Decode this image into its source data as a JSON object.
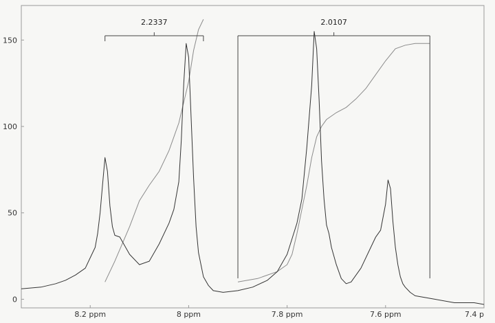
{
  "chart_data": {
    "type": "line",
    "title": "",
    "xlabel": "",
    "ylabel": "",
    "x_reversed": true,
    "xlim": [
      8.34,
      7.4
    ],
    "ylim": [
      -5,
      170
    ],
    "x_ticks": [
      {
        "value": 8.2,
        "label": "8.2 ppm"
      },
      {
        "value": 8.0,
        "label": "8 ppm"
      },
      {
        "value": 7.8,
        "label": "7.8 ppm"
      },
      {
        "value": 7.6,
        "label": "7.6 ppm"
      },
      {
        "value": 7.4,
        "label": "7.4 p"
      }
    ],
    "y_ticks": [
      {
        "value": 0,
        "label": "0"
      },
      {
        "value": 50,
        "label": "50"
      },
      {
        "value": 100,
        "label": "100"
      },
      {
        "value": 150,
        "label": "150"
      }
    ],
    "grid": false,
    "spectrum": {
      "x": [
        8.34,
        8.3,
        8.27,
        8.25,
        8.23,
        8.21,
        8.2,
        8.19,
        8.185,
        8.18,
        8.175,
        8.17,
        8.165,
        8.16,
        8.155,
        8.15,
        8.14,
        8.12,
        8.1,
        8.08,
        8.06,
        8.04,
        8.03,
        8.02,
        8.015,
        8.01,
        8.005,
        8.0,
        7.995,
        7.99,
        7.985,
        7.98,
        7.975,
        7.97,
        7.96,
        7.95,
        7.93,
        7.9,
        7.87,
        7.84,
        7.82,
        7.8,
        7.79,
        7.78,
        7.77,
        7.76,
        7.75,
        7.745,
        7.74,
        7.735,
        7.73,
        7.725,
        7.72,
        7.715,
        7.71,
        7.7,
        7.69,
        7.68,
        7.67,
        7.65,
        7.63,
        7.62,
        7.61,
        7.6,
        7.595,
        7.59,
        7.585,
        7.58,
        7.575,
        7.57,
        7.565,
        7.56,
        7.55,
        7.54,
        7.52,
        7.5,
        7.46,
        7.42,
        7.4
      ],
      "y": [
        6,
        7,
        9,
        11,
        14,
        18,
        24,
        30,
        38,
        50,
        66,
        82,
        74,
        54,
        42,
        37,
        36,
        26,
        20,
        22,
        32,
        44,
        52,
        68,
        92,
        125,
        148,
        140,
        105,
        70,
        42,
        27,
        20,
        13,
        8,
        5,
        4,
        5,
        7,
        11,
        16,
        26,
        35,
        44,
        58,
        88,
        124,
        155,
        145,
        115,
        80,
        58,
        43,
        38,
        30,
        20,
        12,
        9,
        10,
        18,
        30,
        36,
        40,
        55,
        69,
        64,
        45,
        30,
        20,
        13,
        9,
        7,
        4,
        2,
        1,
        0,
        -2,
        -2,
        -3
      ]
    },
    "integrals": [
      {
        "label": "2.2337",
        "x_start": 8.17,
        "x_end": 7.97,
        "curve": {
          "x": [
            8.17,
            8.15,
            8.12,
            8.1,
            8.08,
            8.06,
            8.04,
            8.02,
            8.0,
            7.99,
            7.98,
            7.97
          ],
          "y": [
            10,
            22,
            42,
            57,
            66,
            74,
            86,
            102,
            126,
            144,
            156,
            162
          ]
        }
      },
      {
        "label": "2.0107",
        "x_start": 7.9,
        "x_end": 7.51,
        "curve": {
          "x": [
            7.9,
            7.86,
            7.82,
            7.8,
            7.79,
            7.78,
            7.77,
            7.76,
            7.75,
            7.74,
            7.73,
            7.72,
            7.7,
            7.68,
            7.66,
            7.64,
            7.62,
            7.6,
            7.58,
            7.56,
            7.54,
            7.52,
            7.51
          ],
          "y": [
            10,
            12,
            16,
            20,
            26,
            38,
            52,
            66,
            82,
            94,
            100,
            104,
            108,
            111,
            116,
            122,
            130,
            138,
            145,
            147,
            148,
            148,
            148
          ]
        }
      }
    ],
    "colors": {
      "background": "#f7f7f5",
      "spectrum": "#333333",
      "integral_curve": "#8a8a8a",
      "bracket": "#444444",
      "axis": "#999999"
    }
  }
}
